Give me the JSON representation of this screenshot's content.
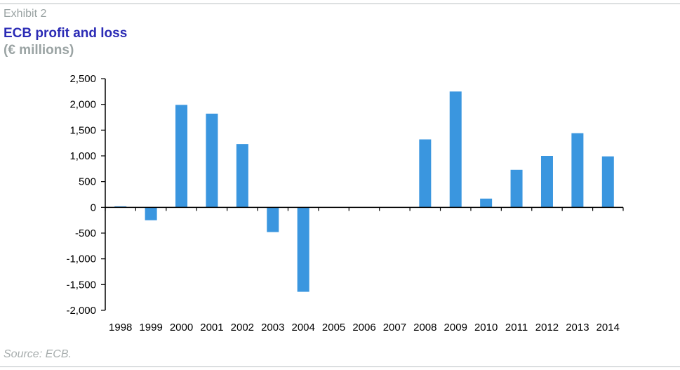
{
  "header": {
    "exhibit": "Exhibit 2",
    "title": "ECB profit and loss",
    "subtitle": "(€ millions)"
  },
  "footer": {
    "source": "Source: ECB."
  },
  "colors": {
    "bar": "#3a96df",
    "title": "#2b2bb5",
    "muted": "#9aa3a3",
    "axis": "#000000"
  },
  "chart_data": {
    "type": "bar",
    "title": "ECB profit and loss",
    "subtitle": "(€ millions)",
    "xlabel": "",
    "ylabel": "",
    "categories": [
      "1998",
      "1999",
      "2000",
      "2001",
      "2002",
      "2003",
      "2004",
      "2005",
      "2006",
      "2007",
      "2008",
      "2009",
      "2010",
      "2011",
      "2012",
      "2013",
      "2014"
    ],
    "values": [
      20,
      -250,
      1990,
      1820,
      1230,
      -480,
      -1640,
      0,
      0,
      0,
      1320,
      2250,
      170,
      730,
      1000,
      1440,
      990
    ],
    "ylim": [
      -2000,
      2500
    ],
    "yticks": [
      2500,
      2000,
      1500,
      1000,
      500,
      0,
      -500,
      -1000,
      -1500,
      -2000
    ],
    "ytick_labels": [
      "2,500",
      "2,000",
      "1,500",
      "1,000",
      "500",
      "0",
      "-500",
      "-1,000",
      "-1,500",
      "-2,000"
    ],
    "grid": false,
    "legend": "none"
  }
}
